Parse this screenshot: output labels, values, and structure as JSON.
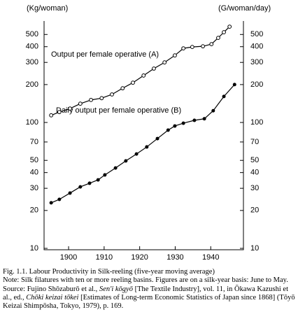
{
  "chart_data": {
    "type": "line",
    "y_label": "(Kg/woman)",
    "y2_label": "(G/woman/day)",
    "log_scale": true,
    "xlim": [
      1893.1,
      1949.2
    ],
    "xticks": [
      1900,
      1910,
      1920,
      1930,
      1940
    ],
    "ylim": [
      10,
      640
    ],
    "yticks": [
      10,
      20,
      30,
      40,
      50,
      70,
      100,
      200,
      300,
      400,
      500
    ],
    "y2lim": [
      10,
      640
    ],
    "y2ticks": [
      10,
      20,
      30,
      40,
      50,
      70,
      100,
      200,
      300,
      400,
      500
    ],
    "annotations": [
      "Output per female operative (A)",
      "Daily output per female operative (B)"
    ],
    "series": [
      {
        "name": "Output per female operative (A)",
        "color": "#000000",
        "marker": "open",
        "x": [
          1895.1,
          1897.4,
          1900.4,
          1903.3,
          1906.3,
          1909.3,
          1912.2,
          1915.2,
          1918.1,
          1921.1,
          1924.0,
          1927.0,
          1929.9,
          1932.3,
          1934.8,
          1937.8,
          1940.2,
          1942.1,
          1943.7,
          1945.3
        ],
        "values": [
          114,
          121,
          129,
          141,
          151,
          156,
          167,
          187,
          207,
          236,
          268,
          300,
          341,
          388,
          398,
          403,
          419,
          470,
          521,
          577
        ]
      },
      {
        "name": "Daily output per female operative (B)",
        "color": "#000000",
        "marker": "filled",
        "axis": "y2",
        "x": [
          1895.1,
          1897.4,
          1900.4,
          1903.3,
          1905.9,
          1908.3,
          1910.2,
          1913.2,
          1916.1,
          1919.1,
          1922.0,
          1925.0,
          1928.0,
          1929.9,
          1932.3,
          1935.4,
          1938.2,
          1940.7,
          1943.7,
          1946.7
        ],
        "values": [
          23.0,
          24.5,
          27.5,
          30.8,
          32.9,
          35.0,
          38.3,
          43.5,
          49.5,
          56.2,
          63.9,
          74.5,
          86.9,
          93.8,
          98.7,
          104,
          107,
          124,
          161,
          200
        ]
      }
    ]
  },
  "caption": {
    "figure": "Fig. 1.1. Labour Productivity in Silk-reeling (five-year moving average)",
    "note": "Note: Silk filatures with ten or more reeling basins. Figures are on a silk-year basis: June to May.",
    "source": [
      "Source: Fujino Shōzaburō et al., ",
      "Sen'i kōgyō",
      " [The Textile Industry], vol. 11, in Ōkawa Kazushi et al., ed., ",
      "Chōki keizai tōkei",
      " [Estimates of Long-term Economic Statistics of Japan since 1868] (Tōyō Keizai Shimpōsha, Tokyo, 1979), p. 169."
    ]
  }
}
